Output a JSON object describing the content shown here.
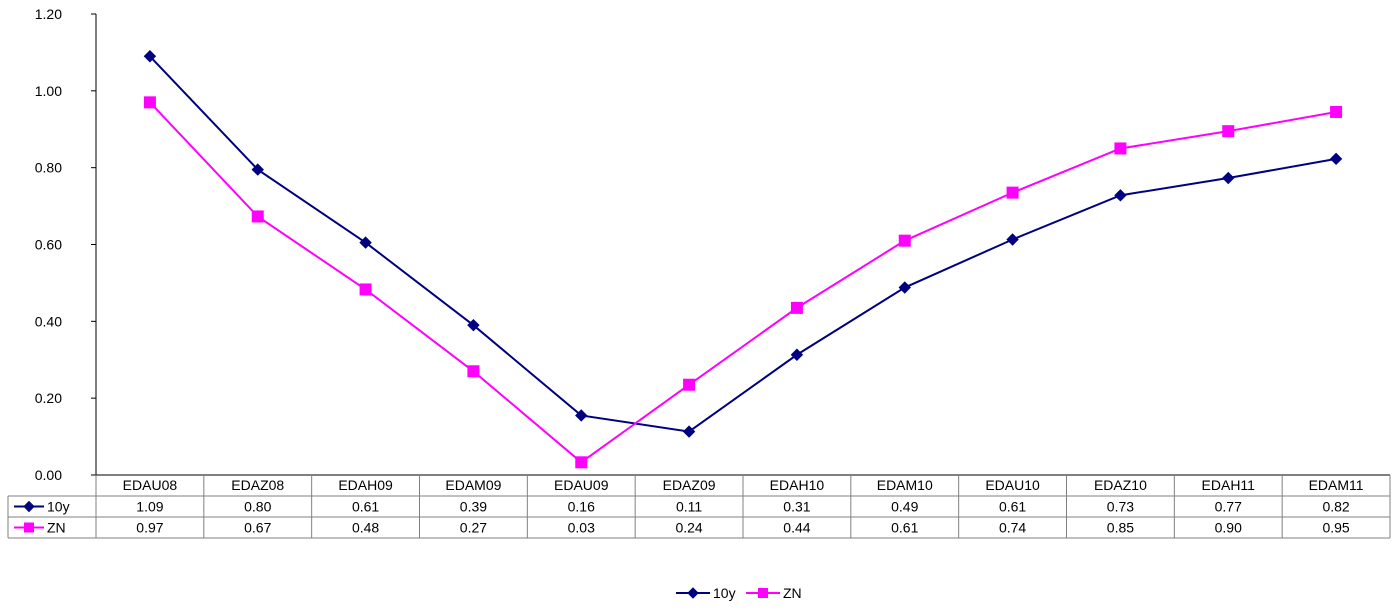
{
  "colors": {
    "series_10y": "#000080",
    "series_ZN": "#FF00FF",
    "axis": "#000000",
    "table_border": "#808080",
    "background": "#FFFFFF"
  },
  "chart_data": {
    "type": "line",
    "title": "",
    "xlabel": "",
    "ylabel": "",
    "ylim": [
      0,
      1.2
    ],
    "yticks": [
      "0.00",
      "0.20",
      "0.40",
      "0.60",
      "0.80",
      "1.00",
      "1.20"
    ],
    "grid": false,
    "legend_position": "bottom-center",
    "categories": [
      "EDAU08",
      "EDAZ08",
      "EDAH09",
      "EDAM09",
      "EDAU09",
      "EDAZ09",
      "EDAH10",
      "EDAM10",
      "EDAU10",
      "EDAZ10",
      "EDAH11",
      "EDAM11"
    ],
    "series": [
      {
        "name": "10y",
        "marker": "diamond",
        "values": [
          1.09,
          0.795,
          0.605,
          0.39,
          0.155,
          0.113,
          0.313,
          0.488,
          0.613,
          0.728,
          0.773,
          0.823
        ],
        "table_labels": [
          "1.09",
          "0.80",
          "0.61",
          "0.39",
          "0.16",
          "0.11",
          "0.31",
          "0.49",
          "0.61",
          "0.73",
          "0.77",
          "0.82"
        ]
      },
      {
        "name": "ZN",
        "marker": "square",
        "values": [
          0.97,
          0.673,
          0.483,
          0.27,
          0.033,
          0.235,
          0.435,
          0.61,
          0.735,
          0.85,
          0.895,
          0.945
        ],
        "table_labels": [
          "0.97",
          "0.67",
          "0.48",
          "0.27",
          "0.03",
          "0.24",
          "0.44",
          "0.61",
          "0.74",
          "0.85",
          "0.90",
          "0.95"
        ]
      }
    ]
  }
}
